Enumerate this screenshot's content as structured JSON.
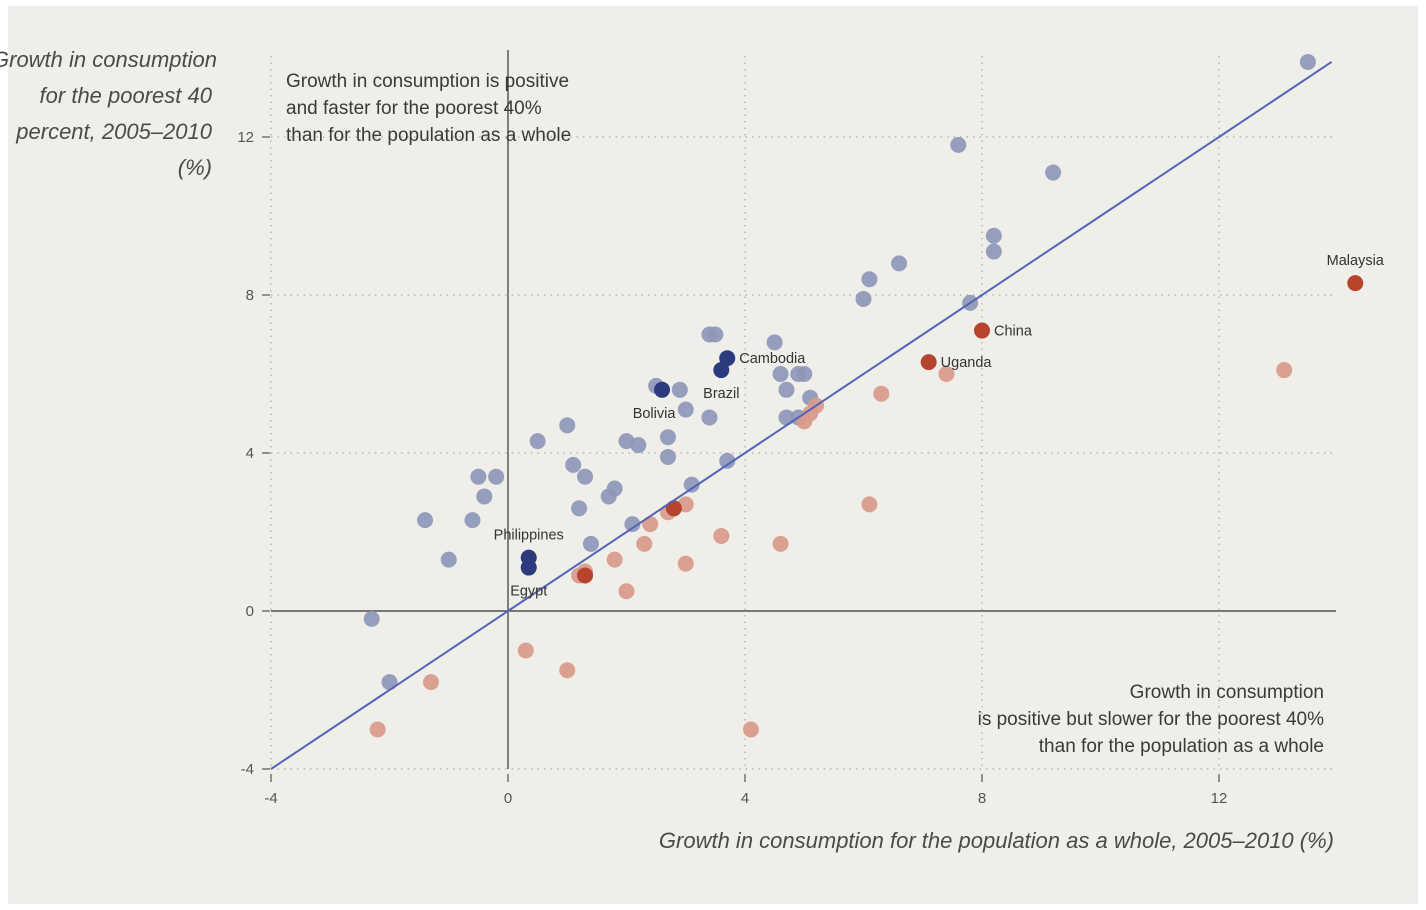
{
  "chart_data": {
    "type": "scatter",
    "title": "",
    "xlabel": "Growth in consumption for the population as a whole, 2005–2010 (%)",
    "ylabel_lines": [
      "Growth in consumption",
      "for the poorest 40",
      "percent, 2005–2010",
      "(%)"
    ],
    "xlim": [
      -4,
      14
    ],
    "ylim": [
      -4,
      14
    ],
    "xticks": [
      -4,
      0,
      4,
      8,
      12
    ],
    "yticks": [
      -4,
      0,
      4,
      8,
      12
    ],
    "grid": "dotted",
    "annotations": {
      "top_left": [
        "Growth in consumption is positive",
        "and faster for the poorest 40%",
        "than for the population as a whole"
      ],
      "bottom_right": [
        "Growth in consumption",
        "is positive but slower for the poorest 40%",
        "than for the population as a whole"
      ]
    },
    "colors": {
      "faster": "#8e97b8",
      "slower": "#d89a8a",
      "faster_highlight": "#2c3a7e",
      "slower_highlight": "#b7442c",
      "diagonal": "#5364b8",
      "axis": "#333333",
      "grid": "#9a9a9a"
    },
    "series": [
      {
        "group": "faster",
        "points": [
          [
            13.5,
            13.9
          ],
          [
            7.6,
            11.8
          ],
          [
            9.2,
            11.1
          ],
          [
            8.2,
            9.5
          ],
          [
            8.2,
            9.1
          ],
          [
            6.6,
            8.8
          ],
          [
            6.1,
            8.4
          ],
          [
            6.0,
            7.9
          ],
          [
            7.8,
            7.8
          ],
          [
            3.4,
            7.0
          ],
          [
            3.5,
            7.0
          ],
          [
            4.5,
            6.8
          ],
          [
            4.6,
            6.0
          ],
          [
            5.0,
            6.0
          ],
          [
            4.9,
            6.0
          ],
          [
            2.5,
            5.7
          ],
          [
            2.9,
            5.6
          ],
          [
            4.7,
            5.6
          ],
          [
            5.1,
            5.4
          ],
          [
            3.0,
            5.1
          ],
          [
            3.4,
            4.9
          ],
          [
            4.7,
            4.9
          ],
          [
            4.9,
            4.9
          ],
          [
            1.0,
            4.7
          ],
          [
            0.5,
            4.3
          ],
          [
            2.0,
            4.3
          ],
          [
            2.2,
            4.2
          ],
          [
            2.7,
            4.4
          ],
          [
            1.1,
            3.7
          ],
          [
            2.7,
            3.9
          ],
          [
            3.7,
            3.8
          ],
          [
            1.3,
            3.4
          ],
          [
            -0.5,
            3.4
          ],
          [
            -0.2,
            3.4
          ],
          [
            1.8,
            3.1
          ],
          [
            1.7,
            2.9
          ],
          [
            -0.4,
            2.9
          ],
          [
            3.1,
            3.2
          ],
          [
            1.2,
            2.6
          ],
          [
            -1.4,
            2.3
          ],
          [
            -0.6,
            2.3
          ],
          [
            2.1,
            2.2
          ],
          [
            1.4,
            1.7
          ],
          [
            -1.0,
            1.3
          ],
          [
            -2.3,
            -0.2
          ],
          [
            -2.0,
            -1.8
          ]
        ]
      },
      {
        "group": "slower",
        "points": [
          [
            13.1,
            6.1
          ],
          [
            7.4,
            6.0
          ],
          [
            6.3,
            5.5
          ],
          [
            5.2,
            5.2
          ],
          [
            5.1,
            5.0
          ],
          [
            5.0,
            4.8
          ],
          [
            6.1,
            2.7
          ],
          [
            3.0,
            2.7
          ],
          [
            2.7,
            2.5
          ],
          [
            2.4,
            2.2
          ],
          [
            3.6,
            1.9
          ],
          [
            2.3,
            1.7
          ],
          [
            4.6,
            1.7
          ],
          [
            1.8,
            1.3
          ],
          [
            3.0,
            1.2
          ],
          [
            1.3,
            1.0
          ],
          [
            1.2,
            0.9
          ],
          [
            2.0,
            0.5
          ],
          [
            0.3,
            -1.0
          ],
          [
            1.0,
            -1.5
          ],
          [
            -1.3,
            -1.8
          ],
          [
            -2.2,
            -3.0
          ],
          [
            4.1,
            -3.0
          ]
        ]
      },
      {
        "group": "faster_highlight",
        "points": [
          {
            "x": 3.7,
            "y": 6.4,
            "label": "Cambodia",
            "anchor": "right"
          },
          {
            "x": 3.6,
            "y": 6.1,
            "label": "Brazil",
            "anchor": "below"
          },
          {
            "x": 2.6,
            "y": 5.6,
            "label": "Bolivia",
            "anchor": "below-left"
          },
          {
            "x": 0.35,
            "y": 1.35,
            "label": "Philippines",
            "anchor": "above"
          },
          {
            "x": 0.35,
            "y": 1.1,
            "label": "Egypt",
            "anchor": "below"
          }
        ]
      },
      {
        "group": "slower_highlight",
        "points": [
          {
            "x": 14.3,
            "y": 8.3,
            "label": "Malaysia",
            "anchor": "above"
          },
          {
            "x": 8.0,
            "y": 7.1,
            "label": "China",
            "anchor": "right"
          },
          {
            "x": 7.1,
            "y": 6.3,
            "label": "Uganda",
            "anchor": "right"
          },
          {
            "x": 2.8,
            "y": 2.6,
            "label": "",
            "anchor": "none"
          },
          {
            "x": 1.3,
            "y": 0.9,
            "label": "",
            "anchor": "none"
          }
        ]
      }
    ]
  }
}
